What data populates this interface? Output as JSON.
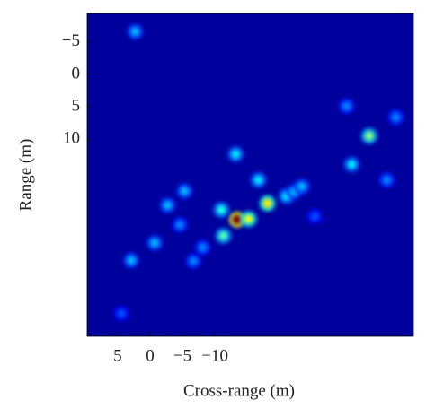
{
  "chart_data": {
    "type": "heatmap-spots",
    "x_label": "Cross-range (m)",
    "y_label": "Range (m)",
    "xlim": [
      9.7,
      -40.6
    ],
    "ylim": [
      40.4,
      -9.4
    ],
    "xticks": [
      5,
      0,
      {
        "value": -5,
        "label": "−5"
      },
      {
        "value": -10,
        "label": "−10"
      }
    ],
    "yticks": [
      {
        "value": -5,
        "label": "−5"
      },
      0,
      5,
      10
    ],
    "background": "#00009c",
    "colormap": "jet",
    "x": [
      -13.4,
      -15.2,
      -11.3,
      -11.0,
      -18.1,
      -33.8,
      -31.1,
      -13.2,
      -16.7,
      -21.0,
      -22.2,
      -5.3,
      -2.7,
      -0.7,
      2.9,
      -6.7,
      2.3,
      -30.3,
      -37.9,
      -36.5,
      -23.4,
      4.4,
      -4.6,
      -8.1,
      -25.4
    ],
    "y": [
      22.4,
      22.3,
      24.9,
      20.9,
      19.9,
      9.5,
      13.9,
      12.3,
      16.3,
      18.8,
      18.1,
      18.0,
      20.2,
      26.0,
      28.7,
      28.8,
      -6.6,
      4.9,
      6.6,
      16.3,
      17.3,
      36.9,
      23.2,
      26.7,
      21.9
    ],
    "values": [
      1.0,
      0.6,
      0.45,
      0.4,
      0.65,
      0.5,
      0.35,
      0.35,
      0.35,
      0.35,
      0.3,
      0.3,
      0.3,
      0.3,
      0.3,
      0.25,
      0.3,
      0.25,
      0.25,
      0.25,
      0.3,
      0.2,
      0.25,
      0.25,
      0.2
    ]
  }
}
